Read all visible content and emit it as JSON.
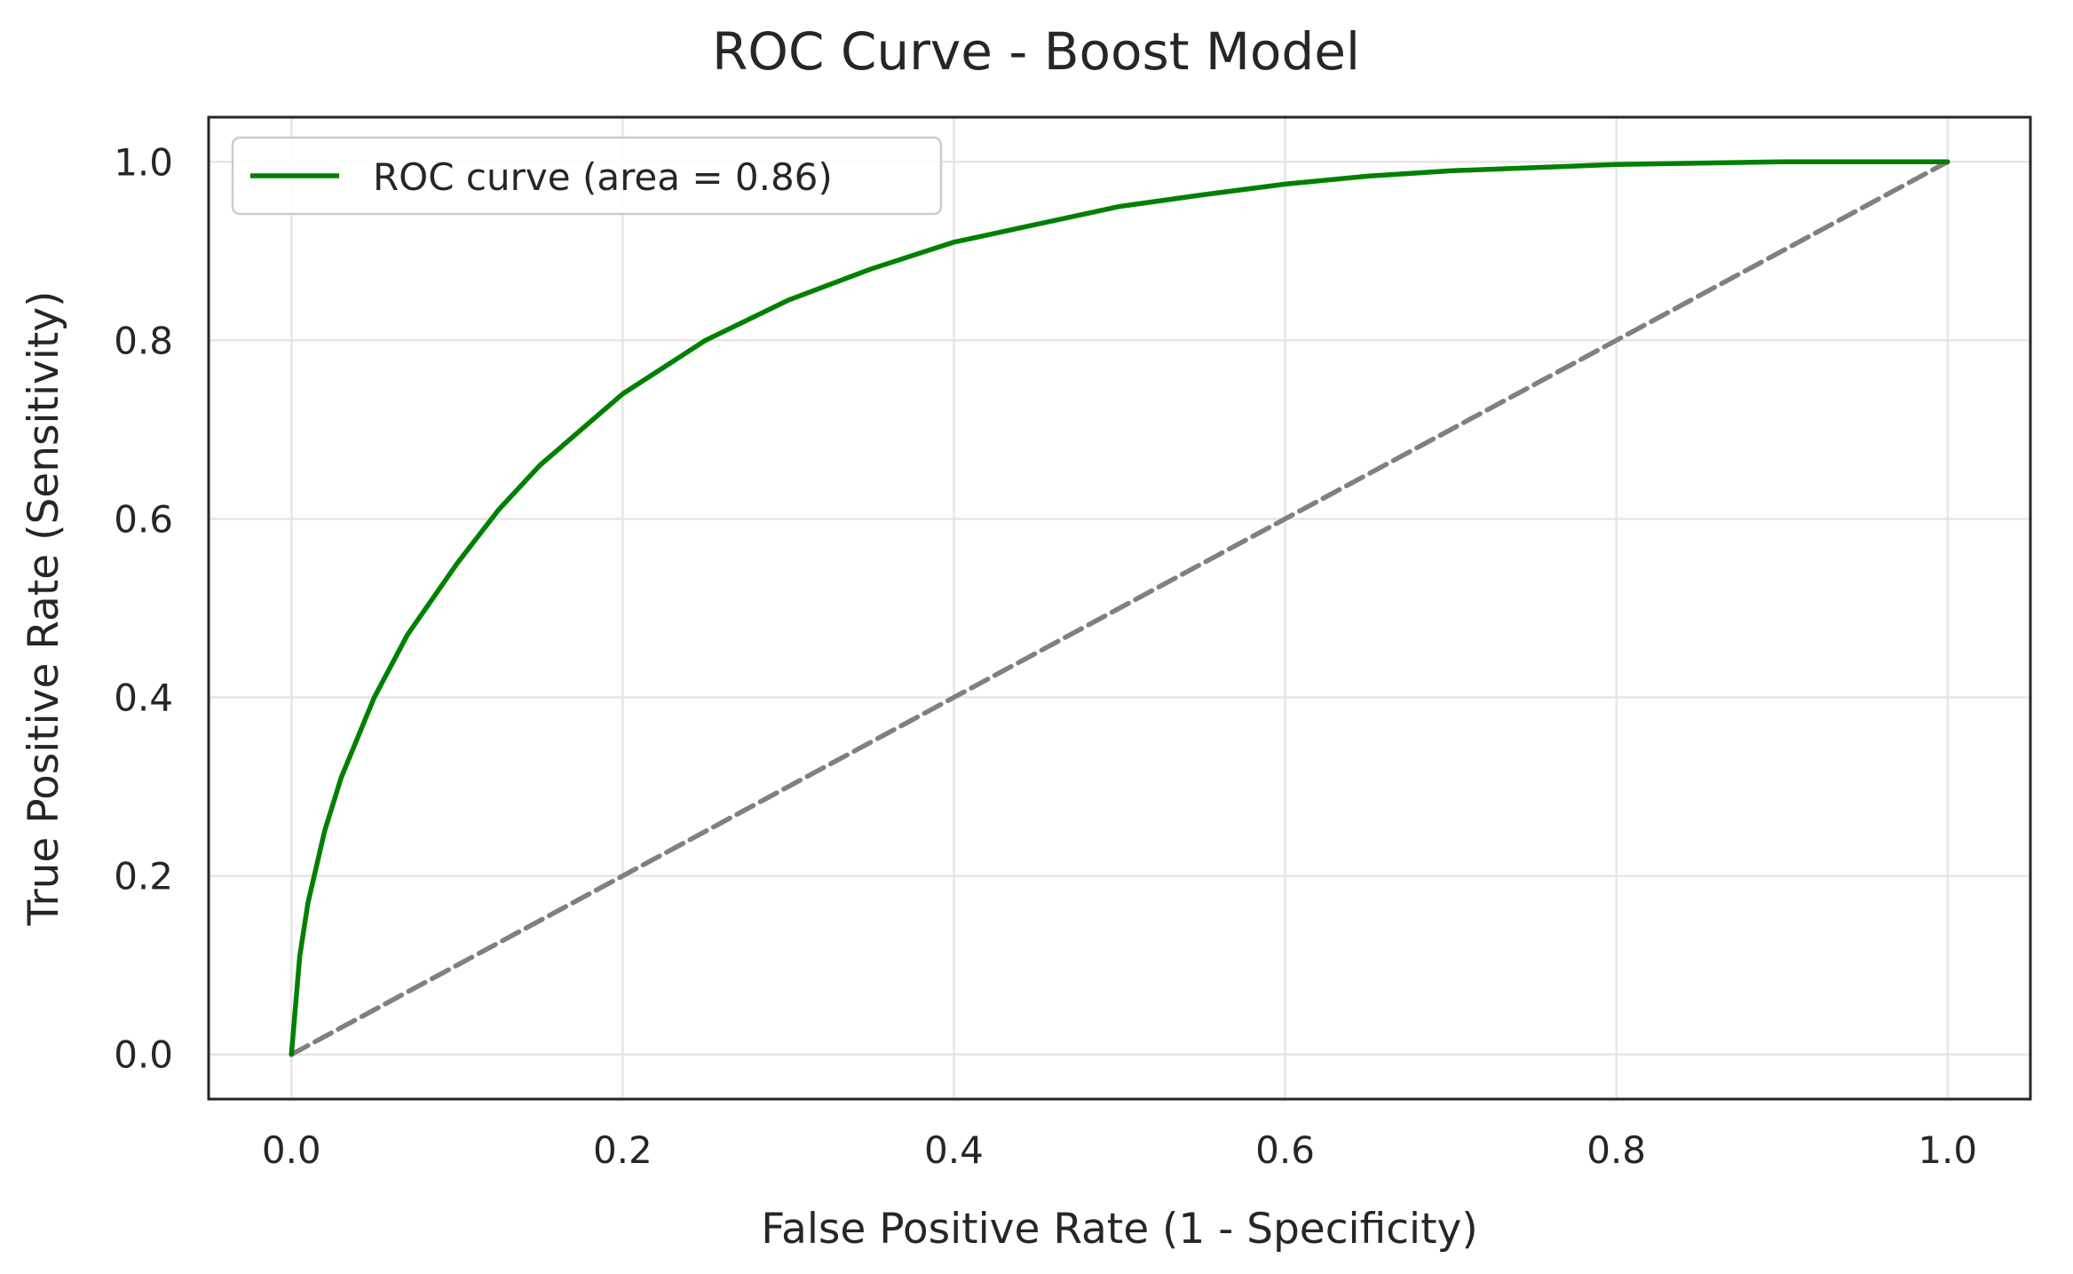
{
  "chart_data": {
    "type": "line",
    "title": "ROC Curve - Boost Model",
    "xlabel": "False Positive Rate (1 - Specificity)",
    "ylabel": "True Positive Rate (Sensitivity)",
    "xlim": [
      -0.05,
      1.05
    ],
    "ylim": [
      -0.05,
      1.05
    ],
    "xticks": [
      0.0,
      0.2,
      0.4,
      0.6,
      0.8,
      1.0
    ],
    "yticks": [
      0.0,
      0.2,
      0.4,
      0.6,
      0.8,
      1.0
    ],
    "xtick_labels": [
      "0.0",
      "0.2",
      "0.4",
      "0.6",
      "0.8",
      "1.0"
    ],
    "ytick_labels": [
      "0.0",
      "0.2",
      "0.4",
      "0.6",
      "0.8",
      "1.0"
    ],
    "grid": true,
    "legend_position": "top-left",
    "series": [
      {
        "name": "ROC curve (area = 0.86)",
        "color": "#008000",
        "style": "solid",
        "x": [
          0.0,
          0.005,
          0.01,
          0.02,
          0.03,
          0.05,
          0.07,
          0.1,
          0.125,
          0.15,
          0.2,
          0.25,
          0.3,
          0.35,
          0.4,
          0.45,
          0.5,
          0.55,
          0.6,
          0.65,
          0.7,
          0.8,
          0.9,
          1.0
        ],
        "y": [
          0.0,
          0.11,
          0.17,
          0.25,
          0.31,
          0.4,
          0.47,
          0.55,
          0.61,
          0.66,
          0.74,
          0.8,
          0.845,
          0.88,
          0.91,
          0.93,
          0.95,
          0.963,
          0.975,
          0.984,
          0.99,
          0.997,
          1.0,
          1.0
        ]
      },
      {
        "name": "",
        "color": "#808080",
        "style": "dashed",
        "x": [
          0.0,
          1.0
        ],
        "y": [
          0.0,
          1.0
        ]
      }
    ]
  }
}
